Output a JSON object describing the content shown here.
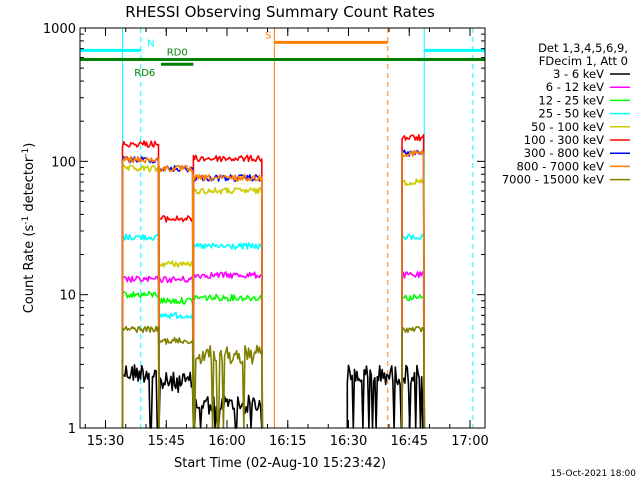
{
  "chart_data": {
    "type": "line",
    "title": "RHESSI Observing Summary Count Rates",
    "xlabel": "Start Time (02-Aug-10 15:23:42)",
    "ylabel_main": "Count Rate (s",
    "ylabel_sup1": "-1",
    "ylabel_mid": " detector",
    "ylabel_sup2": "-1",
    "ylabel_end": ")",
    "y_scale": "log",
    "ylim": [
      1,
      1000
    ],
    "xlim_minutes": [
      0,
      100
    ],
    "x_ticks": [
      {
        "label": "15:30",
        "minutes": 6.3
      },
      {
        "label": "15:45",
        "minutes": 21.3
      },
      {
        "label": "16:00",
        "minutes": 36.3
      },
      {
        "label": "16:15",
        "minutes": 51.3
      },
      {
        "label": "16:30",
        "minutes": 66.3
      },
      {
        "label": "16:45",
        "minutes": 81.3
      },
      {
        "label": "17:00",
        "minutes": 96.3
      }
    ],
    "y_ticks": [
      {
        "label": "1",
        "value": 1
      },
      {
        "label": "10",
        "value": 10
      },
      {
        "label": "100",
        "value": 100
      },
      {
        "label": "1000",
        "value": 1000
      }
    ],
    "legend_header": [
      "Det 1,3,4,5,6,9,",
      "FDecim 1, Att 0"
    ],
    "series": [
      {
        "name": "3 - 6 keV",
        "color": "#000000",
        "segments": [
          [
            10.5,
            19.5,
            2.6
          ],
          [
            19.5,
            28,
            2.2
          ],
          [
            28,
            45,
            1.5
          ],
          [
            66,
            85,
            2.5
          ]
        ]
      },
      {
        "name": "6 - 12 keV",
        "color": "#ff00ff",
        "segments": [
          [
            10.5,
            19.5,
            13
          ],
          [
            19.5,
            28,
            13
          ],
          [
            28,
            45,
            14
          ],
          [
            79.5,
            85,
            14
          ]
        ]
      },
      {
        "name": "12 - 25 keV",
        "color": "#00ff00",
        "segments": [
          [
            10.5,
            19.5,
            10
          ],
          [
            19.5,
            28,
            9
          ],
          [
            28,
            45,
            9.5
          ],
          [
            79.5,
            85,
            9.5
          ]
        ]
      },
      {
        "name": "25 - 50 keV",
        "color": "#00ffff",
        "segments": [
          [
            10.5,
            19.5,
            27
          ],
          [
            19.5,
            28,
            7
          ],
          [
            28,
            45,
            23
          ],
          [
            79.5,
            85,
            27
          ]
        ]
      },
      {
        "name": "50 - 100 keV",
        "color": "#cccc00",
        "segments": [
          [
            10.5,
            19.5,
            88
          ],
          [
            19.5,
            28,
            17
          ],
          [
            28,
            45,
            60
          ],
          [
            79.5,
            85,
            70
          ]
        ]
      },
      {
        "name": "100 - 300 keV",
        "color": "#ff0000",
        "segments": [
          [
            10.5,
            19.5,
            135
          ],
          [
            19.5,
            28,
            37
          ],
          [
            28,
            45,
            105
          ],
          [
            79.5,
            85,
            150
          ]
        ]
      },
      {
        "name": "300 - 800 keV",
        "color": "#0000ff",
        "segments": [
          [
            10.5,
            19.5,
            103
          ],
          [
            19.5,
            28,
            88
          ],
          [
            28,
            45,
            75
          ],
          [
            79.5,
            85,
            115
          ]
        ]
      },
      {
        "name": "800 - 7000 keV",
        "color": "#ff8000",
        "segments": [
          [
            10.5,
            19.5,
            103
          ],
          [
            19.5,
            28,
            88
          ],
          [
            28,
            45,
            75
          ],
          [
            79.5,
            85,
            115
          ]
        ]
      },
      {
        "name": "7000 - 15000 keV",
        "color": "#808000",
        "segments": [
          [
            10.5,
            19.5,
            5.5
          ],
          [
            19.5,
            28,
            4.5
          ],
          [
            28,
            45,
            3.5
          ],
          [
            79.5,
            85,
            5.5
          ]
        ]
      }
    ],
    "flag_bars": [
      {
        "label": "N",
        "color": "#00ffff",
        "value": 680,
        "ranges": [
          [
            0,
            15
          ],
          [
            85,
            100
          ]
        ],
        "label_minutes": 17.5
      },
      {
        "label": "S",
        "color": "#ff8000",
        "value": 780,
        "ranges": [
          [
            48,
            76
          ]
        ],
        "label_minutes": 46.5
      },
      {
        "label": "RD0",
        "color": "#008000",
        "value": 580,
        "ranges": [
          [
            0,
            100
          ]
        ],
        "label_minutes": 24
      },
      {
        "label": "RD6",
        "color": "#008000",
        "value": 535,
        "ranges": [
          [
            20,
            28
          ]
        ],
        "label_minutes": 16
      }
    ],
    "vertical_lines": [
      {
        "minutes": 10.5,
        "color": "#00ffff",
        "style": "solid"
      },
      {
        "minutes": 15,
        "color": "#00ffff",
        "style": "dashed"
      },
      {
        "minutes": 48,
        "color": "#ff8000",
        "style": "solid"
      },
      {
        "minutes": 76,
        "color": "#ff8000",
        "style": "dashed"
      },
      {
        "minutes": 85,
        "color": "#00ffff",
        "style": "solid"
      },
      {
        "minutes": 97,
        "color": "#00ffff",
        "style": "dashed"
      }
    ],
    "grid": false,
    "legend_position": "right"
  },
  "footer_date": "15-Oct-2021 18:00"
}
